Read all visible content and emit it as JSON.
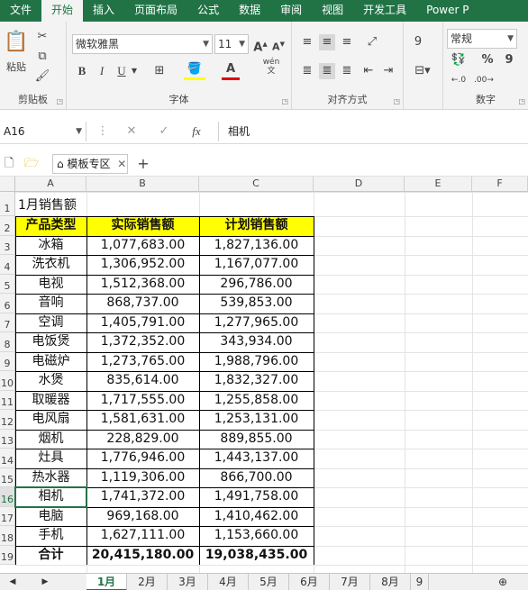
{
  "ribbon_tabs": [
    "文件",
    "开始",
    "插入",
    "页面布局",
    "公式",
    "数据",
    "审阅",
    "视图",
    "开发工具",
    "Power P"
  ],
  "ribbon": {
    "paste_label": "粘贴",
    "clipboard_label": "剪贴板",
    "font_name": "微软雅黑",
    "font_size": "11",
    "font_group_label": "字体",
    "bold": "B",
    "italic": "I",
    "underline": "U",
    "wen": "wén",
    "align_group_label": "对齐方式",
    "number_format": "常规",
    "number_group_label": "数字",
    "percent": "%",
    "comma": "9"
  },
  "formula_bar": {
    "name_box": "A16",
    "fx": "fx",
    "value": "相机"
  },
  "template_bar": {
    "label": "模板专区",
    "plus": "+"
  },
  "columns": [
    "A",
    "B",
    "C",
    "D",
    "E",
    "F"
  ],
  "sheet": {
    "title": "1月销售额",
    "headers": [
      "产品类型",
      "实际销售额",
      "计划销售额"
    ],
    "rows": [
      {
        "name": "冰箱",
        "actual": "1,077,683.00",
        "plan": "1,827,136.00"
      },
      {
        "name": "洗衣机",
        "actual": "1,306,952.00",
        "plan": "1,167,077.00"
      },
      {
        "name": "电视",
        "actual": "1,512,368.00",
        "plan": "296,786.00"
      },
      {
        "name": "音响",
        "actual": "868,737.00",
        "plan": "539,853.00"
      },
      {
        "name": "空调",
        "actual": "1,405,791.00",
        "plan": "1,277,965.00"
      },
      {
        "name": "电饭煲",
        "actual": "1,372,352.00",
        "plan": "343,934.00"
      },
      {
        "name": "电磁炉",
        "actual": "1,273,765.00",
        "plan": "1,988,796.00"
      },
      {
        "name": "水煲",
        "actual": "835,614.00",
        "plan": "1,832,327.00"
      },
      {
        "name": "取暖器",
        "actual": "1,717,555.00",
        "plan": "1,255,858.00"
      },
      {
        "name": "电风扇",
        "actual": "1,581,631.00",
        "plan": "1,253,131.00"
      },
      {
        "name": "烟机",
        "actual": "228,829.00",
        "plan": "889,855.00"
      },
      {
        "name": "灶具",
        "actual": "1,776,946.00",
        "plan": "1,443,137.00"
      },
      {
        "name": "热水器",
        "actual": "1,119,306.00",
        "plan": "866,700.00"
      },
      {
        "name": "相机",
        "actual": "1,741,372.00",
        "plan": "1,491,758.00"
      },
      {
        "name": "电脑",
        "actual": "969,168.00",
        "plan": "1,410,462.00"
      },
      {
        "name": "手机",
        "actual": "1,627,111.00",
        "plan": "1,153,660.00"
      }
    ],
    "total": {
      "name": "合计",
      "actual": "20,415,180.00",
      "plan": "19,038,435.00"
    },
    "row_numbers": [
      "1",
      "2",
      "3",
      "4",
      "5",
      "6",
      "7",
      "8",
      "9",
      "10",
      "11",
      "12",
      "13",
      "14",
      "15",
      "16",
      "17",
      "18",
      "19"
    ]
  },
  "sheet_tabs": [
    "1月",
    "2月",
    "3月",
    "4月",
    "5月",
    "6月",
    "7月",
    "8月",
    "9"
  ],
  "colors": {
    "accent": "#217346",
    "header_fill": "#ffff00"
  }
}
